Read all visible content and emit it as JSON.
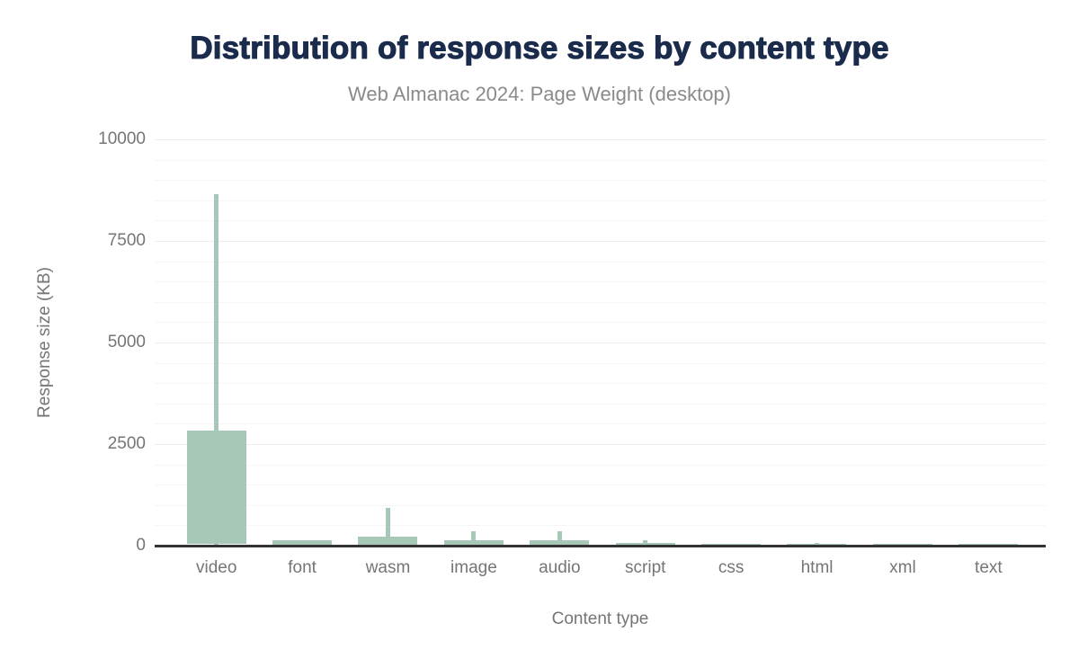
{
  "chart_data": {
    "type": "boxplot",
    "title": "Distribution of response sizes by content type",
    "subtitle": "Web Almanac 2024: Page Weight (desktop)",
    "xlabel": "Content type",
    "ylabel": "Response size (KB)",
    "ylim": [
      0,
      10000
    ],
    "yticks": [
      0,
      2500,
      5000,
      7500,
      10000
    ],
    "minor_grid_step": 500,
    "grid": "on",
    "legend": "none",
    "categories": [
      "video",
      "font",
      "wasm",
      "image",
      "audio",
      "script",
      "css",
      "html",
      "xml",
      "text"
    ],
    "series": [
      {
        "name": "video",
        "p10": 0,
        "p25": 45,
        "p75": 2830,
        "p90": 8650
      },
      {
        "name": "font",
        "p10": 0,
        "p25": 0,
        "p75": 125,
        "p90": 125
      },
      {
        "name": "wasm",
        "p10": 0,
        "p25": 0,
        "p75": 230,
        "p90": 920
      },
      {
        "name": "image",
        "p10": 0,
        "p25": 0,
        "p75": 130,
        "p90": 345
      },
      {
        "name": "audio",
        "p10": 0,
        "p25": 0,
        "p75": 135,
        "p90": 355
      },
      {
        "name": "script",
        "p10": 0,
        "p25": 0,
        "p75": 60,
        "p90": 140
      },
      {
        "name": "css",
        "p10": 0,
        "p25": 0,
        "p75": 55,
        "p90": 55
      },
      {
        "name": "html",
        "p10": 0,
        "p25": 0,
        "p75": 40,
        "p90": 75
      },
      {
        "name": "xml",
        "p10": 0,
        "p25": 0,
        "p75": 35,
        "p90": 35
      },
      {
        "name": "text",
        "p10": 0,
        "p25": 0,
        "p75": 25,
        "p90": 25
      }
    ],
    "colors": {
      "bar": "#a8c8b7",
      "axis_line": "#333333",
      "grid_major": "#ececec",
      "grid_minor": "#f6f6f6",
      "title": "#1a2b4c",
      "subtitle": "#8a8a8a",
      "tick_label": "#757575"
    }
  }
}
